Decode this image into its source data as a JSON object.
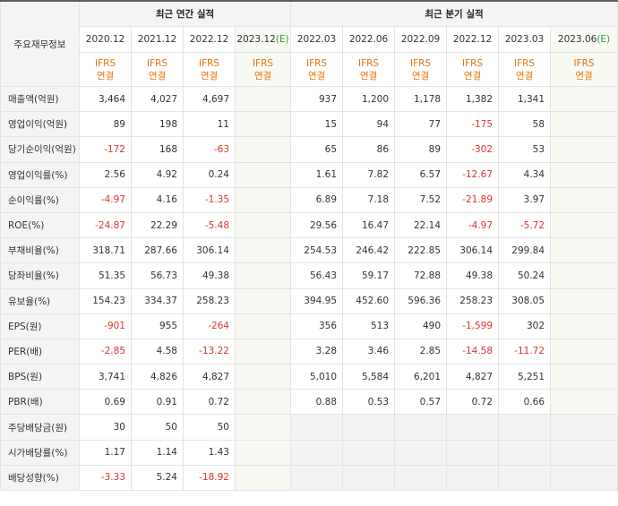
{
  "header": {
    "row_label": "주요재무정보",
    "annual_title": "최근 연간 실적",
    "quarter_title": "최근 분기 실적",
    "annual_periods": [
      "2020.12",
      "2021.12",
      "2022.12"
    ],
    "annual_estimate": {
      "period": "2023.12",
      "mark": "(E)"
    },
    "quarter_periods": [
      "2022.03",
      "2022.06",
      "2022.09",
      "2022.12",
      "2023.03"
    ],
    "quarter_estimate": {
      "period": "2023.06",
      "mark": "(E)"
    },
    "ifrs_line1": "IFRS",
    "ifrs_line2": "연결"
  },
  "colors": {
    "negative": "#e0322a",
    "ifrs": "#e8730a",
    "estimate": "#3a9a3a"
  },
  "rows": [
    {
      "label": "매출액(억원)",
      "annual": [
        "3,464",
        "4,027",
        "4,697",
        ""
      ],
      "quarter": [
        "937",
        "1,200",
        "1,178",
        "1,382",
        "1,341",
        ""
      ]
    },
    {
      "label": "영업이익(억원)",
      "annual": [
        "89",
        "198",
        "11",
        ""
      ],
      "quarter": [
        "15",
        "94",
        "77",
        "-175",
        "58",
        ""
      ]
    },
    {
      "label": "당기순이익(억원)",
      "annual": [
        "-172",
        "168",
        "-63",
        ""
      ],
      "quarter": [
        "65",
        "86",
        "89",
        "-302",
        "53",
        ""
      ]
    },
    {
      "label": "영업이익률(%)",
      "annual": [
        "2.56",
        "4.92",
        "0.24",
        ""
      ],
      "quarter": [
        "1.61",
        "7.82",
        "6.57",
        "-12.67",
        "4.34",
        ""
      ]
    },
    {
      "label": "순이익률(%)",
      "annual": [
        "-4.97",
        "4.16",
        "-1.35",
        ""
      ],
      "quarter": [
        "6.89",
        "7.18",
        "7.52",
        "-21.89",
        "3.97",
        ""
      ]
    },
    {
      "label": "ROE(%)",
      "annual": [
        "-24.87",
        "22.29",
        "-5.48",
        ""
      ],
      "quarter": [
        "29.56",
        "16.47",
        "22.14",
        "-4.97",
        "-5.72",
        ""
      ]
    },
    {
      "label": "부채비율(%)",
      "annual": [
        "318.71",
        "287.66",
        "306.14",
        ""
      ],
      "quarter": [
        "254.53",
        "246.42",
        "222.85",
        "306.14",
        "299.84",
        ""
      ]
    },
    {
      "label": "당좌비율(%)",
      "annual": [
        "51.35",
        "56.73",
        "49.38",
        ""
      ],
      "quarter": [
        "56.43",
        "59.17",
        "72.88",
        "49.38",
        "50.24",
        ""
      ]
    },
    {
      "label": "유보율(%)",
      "annual": [
        "154.23",
        "334.37",
        "258.23",
        ""
      ],
      "quarter": [
        "394.95",
        "452.60",
        "596.36",
        "258.23",
        "308.05",
        ""
      ]
    },
    {
      "label": "EPS(원)",
      "annual": [
        "-901",
        "955",
        "-264",
        ""
      ],
      "quarter": [
        "356",
        "513",
        "490",
        "-1,599",
        "302",
        ""
      ]
    },
    {
      "label": "PER(배)",
      "annual": [
        "-2.85",
        "4.58",
        "-13.22",
        ""
      ],
      "quarter": [
        "3.28",
        "3.46",
        "2.85",
        "-14.58",
        "-11.72",
        ""
      ]
    },
    {
      "label": "BPS(원)",
      "annual": [
        "3,741",
        "4,826",
        "4,827",
        ""
      ],
      "quarter": [
        "5,010",
        "5,584",
        "6,201",
        "4,827",
        "5,251",
        ""
      ]
    },
    {
      "label": "PBR(배)",
      "annual": [
        "0.69",
        "0.91",
        "0.72",
        ""
      ],
      "quarter": [
        "0.88",
        "0.53",
        "0.57",
        "0.72",
        "0.66",
        ""
      ]
    },
    {
      "label": "주당배당금(원)",
      "annual": [
        "30",
        "50",
        "50",
        ""
      ],
      "quarter": [
        "",
        "",
        "",
        "",
        "",
        ""
      ]
    },
    {
      "label": "시가배당률(%)",
      "annual": [
        "1.17",
        "1.14",
        "1.43",
        ""
      ],
      "quarter": [
        "",
        "",
        "",
        "",
        "",
        ""
      ]
    },
    {
      "label": "배당성향(%)",
      "annual": [
        "-3.33",
        "5.24",
        "-18.92",
        ""
      ],
      "quarter": [
        "",
        "",
        "",
        "",
        "",
        ""
      ]
    }
  ]
}
